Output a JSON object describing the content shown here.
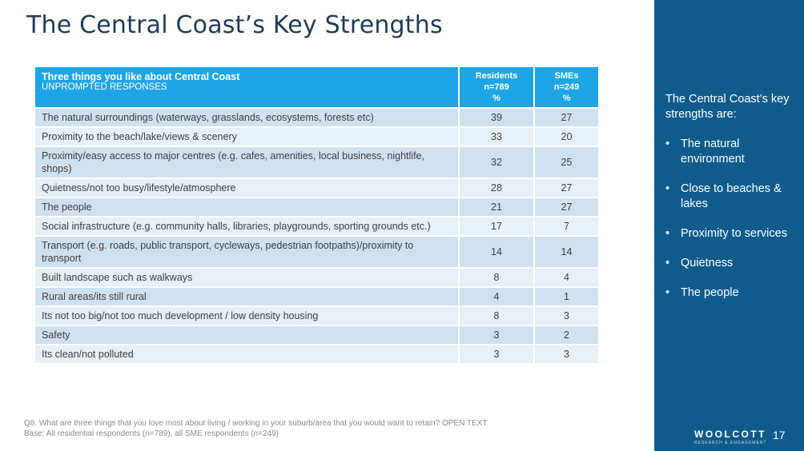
{
  "title": "The Central Coast’s Key Strengths",
  "table": {
    "header": {
      "item": "Three things you like about Central Coast",
      "item_sub": "UNPROMPTED RESPONSES",
      "residents": [
        "Residents",
        "n=789",
        "%"
      ],
      "smes": [
        "SMEs",
        "n=249",
        "%"
      ]
    },
    "rows": [
      {
        "label": "The natural surroundings (waterways, grasslands, ecosystems, forests etc)",
        "residents": "39",
        "smes": "27"
      },
      {
        "label": "Proximity to the beach/lake/views & scenery",
        "residents": "33",
        "smes": "20"
      },
      {
        "label": "Proximity/easy access to major centres (e.g. cafes, amenities, local business, nightlife, shops)",
        "residents": "32",
        "smes": "25"
      },
      {
        "label": "Quietness/not too busy/lifestyle/atmosphere",
        "residents": "28",
        "smes": "27"
      },
      {
        "label": "The people",
        "residents": "21",
        "smes": "27"
      },
      {
        "label": "Social infrastructure (e.g. community halls, libraries, playgrounds, sporting grounds etc.)",
        "residents": "17",
        "smes": "7"
      },
      {
        "label": "Transport (e.g. roads, public transport, cycleways, pedestrian footpaths)/proximity to transport",
        "residents": "14",
        "smes": "14"
      },
      {
        "label": "Built landscape such as walkways",
        "residents": "8",
        "smes": "4"
      },
      {
        "label": "Rural areas/its still rural",
        "residents": "4",
        "smes": "1"
      },
      {
        "label": "Its not too big/not too much development / low density housing",
        "residents": "8",
        "smes": "3"
      },
      {
        "label": "Safety",
        "residents": "3",
        "smes": "2"
      },
      {
        "label": "Its clean/not polluted",
        "residents": "3",
        "smes": "3"
      }
    ]
  },
  "footnote": {
    "question": "Q8. What are three things that you love most about living / working in your suburb/area that you would want to retain? OPEN TEXT",
    "base": "Base:  All residential respondents (n=789), all SME respondents (n=249)"
  },
  "sidebar": {
    "intro": "The Central Coast’s key strengths are:",
    "bullet_char": "•",
    "bullets": [
      "The natural environment",
      "Close to beaches & lakes",
      "Proximity to services",
      "Quietness",
      "The people"
    ]
  },
  "brand": {
    "logo": "WOOLCOTT",
    "tagline": "RESEARCH & ENGAGEMENT"
  },
  "page_number": "17",
  "colors": {
    "header_blue": "#1ea5e6",
    "sidebar_navy": "#0f5c8c",
    "title_navy": "#1f3b57"
  }
}
